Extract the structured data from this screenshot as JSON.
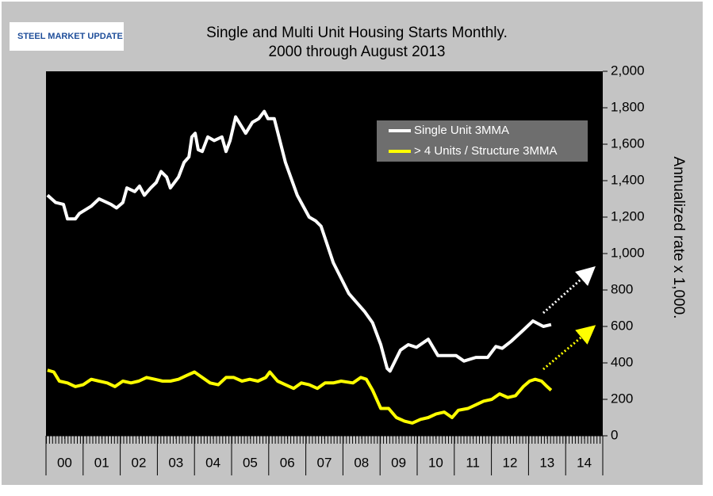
{
  "logo": "STEEL MARKET UPDATE",
  "chart_data": {
    "type": "line",
    "title": "Single and Multi Unit Housing Starts Monthly.",
    "subtitle": "2000 through August 2013",
    "y_label": "Annualized rate x 1,000.",
    "xlim": [
      0,
      15
    ],
    "xticks": [
      {
        "value": 0.5,
        "label": "00"
      },
      {
        "value": 1.5,
        "label": "01"
      },
      {
        "value": 2.5,
        "label": "02"
      },
      {
        "value": 3.5,
        "label": "03"
      },
      {
        "value": 4.5,
        "label": "04"
      },
      {
        "value": 5.5,
        "label": "05"
      },
      {
        "value": 6.5,
        "label": "06"
      },
      {
        "value": 7.5,
        "label": "07"
      },
      {
        "value": 8.5,
        "label": "08"
      },
      {
        "value": 9.5,
        "label": "09"
      },
      {
        "value": 10.5,
        "label": "10"
      },
      {
        "value": 11.5,
        "label": "11"
      },
      {
        "value": 12.5,
        "label": "12"
      },
      {
        "value": 13.5,
        "label": "13"
      },
      {
        "value": 14.5,
        "label": "14"
      }
    ],
    "ylim": [
      0,
      2000
    ],
    "yticks": [
      0,
      200,
      400,
      600,
      800,
      {
        "value": 1000,
        "label": "1,000"
      },
      {
        "value": 1200,
        "label": "1,200"
      },
      {
        "value": 1400,
        "label": "1,400"
      },
      {
        "value": 1600,
        "label": "1,600"
      },
      {
        "value": 1800,
        "label": "1,800"
      },
      {
        "value": 2000,
        "label": "2,000"
      }
    ],
    "y_axis_side": "right",
    "legend": "upper-right",
    "background": "#000000",
    "series": [
      {
        "name": "Single Unit 3MMA",
        "color": "#ffffff",
        "x": [
          0.04,
          0.26,
          0.47,
          0.58,
          0.79,
          0.9,
          1.22,
          1.43,
          1.75,
          1.9,
          2.07,
          2.18,
          2.39,
          2.52,
          2.65,
          2.82,
          2.97,
          3.1,
          3.25,
          3.35,
          3.57,
          3.72,
          3.85,
          3.93,
          4.02,
          4.1,
          4.21,
          4.36,
          4.53,
          4.74,
          4.85,
          4.96,
          5.11,
          5.26,
          5.38,
          5.56,
          5.73,
          5.88,
          5.98,
          6.15,
          6.45,
          6.77,
          7.09,
          7.26,
          7.41,
          7.74,
          8.16,
          8.59,
          8.8,
          9.02,
          9.19,
          9.27,
          9.55,
          9.76,
          9.98,
          10.3,
          10.56,
          11.05,
          11.26,
          11.58,
          11.9,
          12.12,
          12.29,
          12.54,
          12.86,
          13.12,
          13.4,
          13.61
        ],
        "values": [
          1320,
          1280,
          1270,
          1190,
          1190,
          1220,
          1260,
          1300,
          1270,
          1250,
          1280,
          1360,
          1340,
          1370,
          1320,
          1360,
          1390,
          1450,
          1420,
          1360,
          1420,
          1500,
          1530,
          1640,
          1660,
          1570,
          1560,
          1640,
          1620,
          1640,
          1560,
          1620,
          1750,
          1700,
          1660,
          1720,
          1740,
          1780,
          1740,
          1740,
          1500,
          1320,
          1200,
          1180,
          1150,
          950,
          780,
          680,
          620,
          500,
          370,
          355,
          470,
          500,
          485,
          530,
          440,
          440,
          410,
          430,
          430,
          490,
          480,
          520,
          580,
          630,
          600,
          610
        ]
      },
      {
        "name": "> 4 Units / Structure 3MMA",
        "color": "#ffff00",
        "x": [
          0.04,
          0.21,
          0.36,
          0.58,
          0.79,
          1.0,
          1.22,
          1.43,
          1.65,
          1.86,
          2.07,
          2.29,
          2.5,
          2.71,
          2.93,
          3.14,
          3.35,
          3.57,
          3.78,
          4.0,
          4.21,
          4.42,
          4.64,
          4.85,
          5.06,
          5.28,
          5.49,
          5.71,
          5.92,
          6.03,
          6.24,
          6.45,
          6.67,
          6.88,
          7.09,
          7.31,
          7.52,
          7.74,
          7.95,
          8.27,
          8.48,
          8.63,
          8.8,
          9.02,
          9.23,
          9.44,
          9.66,
          9.87,
          10.09,
          10.3,
          10.51,
          10.73,
          10.94,
          11.11,
          11.37,
          11.58,
          11.79,
          12.01,
          12.22,
          12.44,
          12.65,
          12.86,
          13.03,
          13.18,
          13.35,
          13.5,
          13.61
        ],
        "values": [
          360,
          350,
          300,
          290,
          270,
          280,
          310,
          300,
          290,
          270,
          300,
          290,
          300,
          320,
          310,
          300,
          300,
          310,
          330,
          350,
          320,
          290,
          280,
          320,
          320,
          300,
          310,
          300,
          320,
          350,
          300,
          280,
          260,
          290,
          280,
          260,
          290,
          290,
          300,
          290,
          320,
          310,
          250,
          150,
          150,
          100,
          80,
          70,
          90,
          100,
          120,
          130,
          100,
          140,
          150,
          170,
          190,
          200,
          230,
          210,
          220,
          270,
          300,
          310,
          300,
          270,
          250
        ]
      }
    ]
  }
}
